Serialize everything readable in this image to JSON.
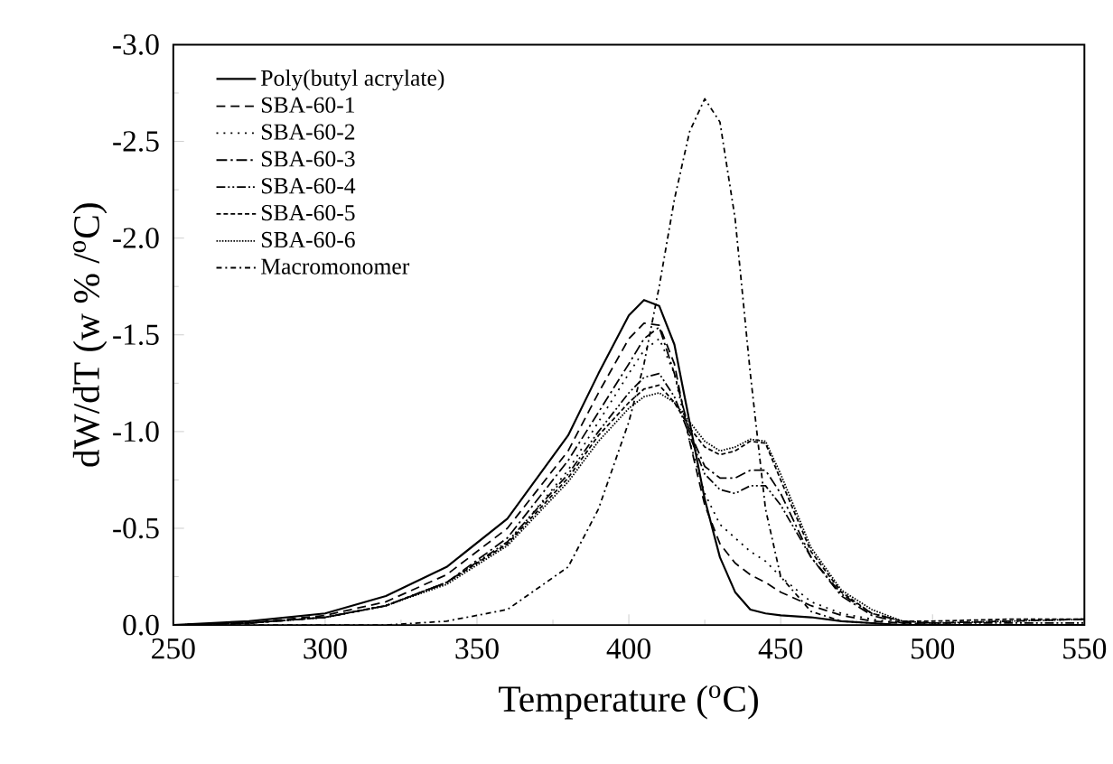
{
  "chart_data": {
    "type": "line",
    "xlabel": "Temperature ($^{o}$C)",
    "ylabel": "dW/dT (w % /$^{o}$C)",
    "x": [
      250,
      275,
      300,
      320,
      340,
      360,
      380,
      390,
      400,
      405,
      410,
      415,
      420,
      425,
      430,
      435,
      440,
      445,
      450,
      460,
      470,
      480,
      490,
      500,
      525,
      550
    ],
    "xlim": [
      250,
      550
    ],
    "ylim": [
      0,
      -3.0
    ],
    "xticks": [
      250,
      {
        "value": 275,
        "label": null
      },
      300,
      {
        "value": 325,
        "label": null
      },
      350,
      {
        "value": 375,
        "label": null
      },
      400,
      {
        "value": 425,
        "label": null
      },
      450,
      {
        "value": 475,
        "label": null
      },
      500,
      {
        "value": 525,
        "label": null
      },
      550
    ],
    "yticks": [
      {
        "value": 0,
        "label": "0.0"
      },
      {
        "value": -0.25,
        "label": null
      },
      {
        "value": -0.5,
        "label": "-0.5"
      },
      {
        "value": -0.75,
        "label": null
      },
      {
        "value": -1.0,
        "label": "-1.0"
      },
      {
        "value": -1.25,
        "label": null
      },
      {
        "value": -1.5,
        "label": "-1.5"
      },
      {
        "value": -1.75,
        "label": null
      },
      {
        "value": -2.0,
        "label": "-2.0"
      },
      {
        "value": -2.25,
        "label": null
      },
      {
        "value": -2.5,
        "label": "-2.5"
      },
      {
        "value": -2.75,
        "label": null
      },
      {
        "value": -3.0,
        "label": "-3.0"
      }
    ],
    "grid": false,
    "legend": "top left",
    "marker": "none",
    "series": [
      {
        "name": "Poly(butyl acrylate)",
        "color": "#000000",
        "line_style": "solid",
        "values": [
          0,
          -0.02,
          -0.06,
          -0.15,
          -0.3,
          -0.55,
          -0.98,
          -1.3,
          -1.6,
          -1.68,
          -1.65,
          -1.45,
          -1.05,
          -0.65,
          -0.35,
          -0.17,
          -0.08,
          -0.06,
          -0.05,
          -0.04,
          -0.02,
          -0.01,
          0,
          0,
          0,
          0
        ]
      },
      {
        "name": "SBA-60-1",
        "color": "#000000",
        "line_style": "dashed",
        "values": [
          0,
          -0.01,
          -0.05,
          -0.12,
          -0.26,
          -0.5,
          -0.9,
          -1.2,
          -1.48,
          -1.56,
          -1.55,
          -1.35,
          -0.95,
          -0.62,
          -0.42,
          -0.32,
          -0.26,
          -0.22,
          -0.17,
          -0.1,
          -0.05,
          -0.02,
          -0.01,
          -0.01,
          -0.02,
          -0.03
        ]
      },
      {
        "name": "SBA-60-2",
        "color": "#000000",
        "line_style": "dotted",
        "values": [
          0,
          -0.01,
          -0.04,
          -0.1,
          -0.22,
          -0.42,
          -0.8,
          -1.05,
          -1.3,
          -1.42,
          -1.48,
          -1.3,
          -0.95,
          -0.68,
          -0.52,
          -0.45,
          -0.38,
          -0.33,
          -0.25,
          -0.12,
          -0.06,
          -0.03,
          -0.01,
          -0.01,
          -0.02,
          -0.03
        ]
      },
      {
        "name": "SBA-60-3",
        "color": "#000000",
        "line_style": "dashdot",
        "values": [
          0,
          -0.01,
          -0.04,
          -0.1,
          -0.22,
          -0.45,
          -0.85,
          -1.1,
          -1.35,
          -1.48,
          -1.54,
          -1.3,
          -1.0,
          -0.82,
          -0.76,
          -0.76,
          -0.8,
          -0.8,
          -0.68,
          -0.35,
          -0.15,
          -0.05,
          -0.01,
          0,
          0,
          0
        ]
      },
      {
        "name": "SBA-60-4",
        "color": "#000000",
        "line_style": "dashdotdot",
        "values": [
          0,
          -0.01,
          -0.04,
          -0.1,
          -0.22,
          -0.43,
          -0.78,
          -1.0,
          -1.2,
          -1.28,
          -1.3,
          -1.18,
          -0.98,
          -0.78,
          -0.7,
          -0.68,
          -0.72,
          -0.72,
          -0.62,
          -0.35,
          -0.16,
          -0.06,
          -0.02,
          -0.01,
          -0.01,
          -0.01
        ]
      },
      {
        "name": "SBA-60-5",
        "color": "#000000",
        "line_style": "shortdashed",
        "values": [
          0,
          -0.01,
          -0.04,
          -0.1,
          -0.22,
          -0.42,
          -0.76,
          -0.98,
          -1.15,
          -1.22,
          -1.24,
          -1.15,
          -1.02,
          -0.92,
          -0.88,
          -0.9,
          -0.95,
          -0.94,
          -0.75,
          -0.38,
          -0.17,
          -0.06,
          -0.02,
          -0.02,
          -0.03,
          -0.03
        ]
      },
      {
        "name": "SBA-60-6",
        "color": "#000000",
        "line_style": "denselydotted",
        "values": [
          0,
          -0.01,
          -0.04,
          -0.1,
          -0.21,
          -0.41,
          -0.74,
          -0.95,
          -1.12,
          -1.18,
          -1.2,
          -1.15,
          -1.05,
          -0.95,
          -0.9,
          -0.92,
          -0.96,
          -0.95,
          -0.78,
          -0.4,
          -0.18,
          -0.08,
          -0.02,
          -0.01,
          -0.02,
          -0.03
        ]
      },
      {
        "name": "Macromonomer",
        "color": "#000000",
        "line_style": "dashdotdotloose",
        "values": [
          0,
          0,
          0,
          0,
          -0.02,
          -0.08,
          -0.3,
          -0.6,
          -1.05,
          -1.35,
          -1.75,
          -2.2,
          -2.55,
          -2.72,
          -2.6,
          -2.1,
          -1.3,
          -0.6,
          -0.25,
          -0.07,
          -0.02,
          -0.01,
          0,
          0,
          0,
          0
        ]
      }
    ]
  }
}
